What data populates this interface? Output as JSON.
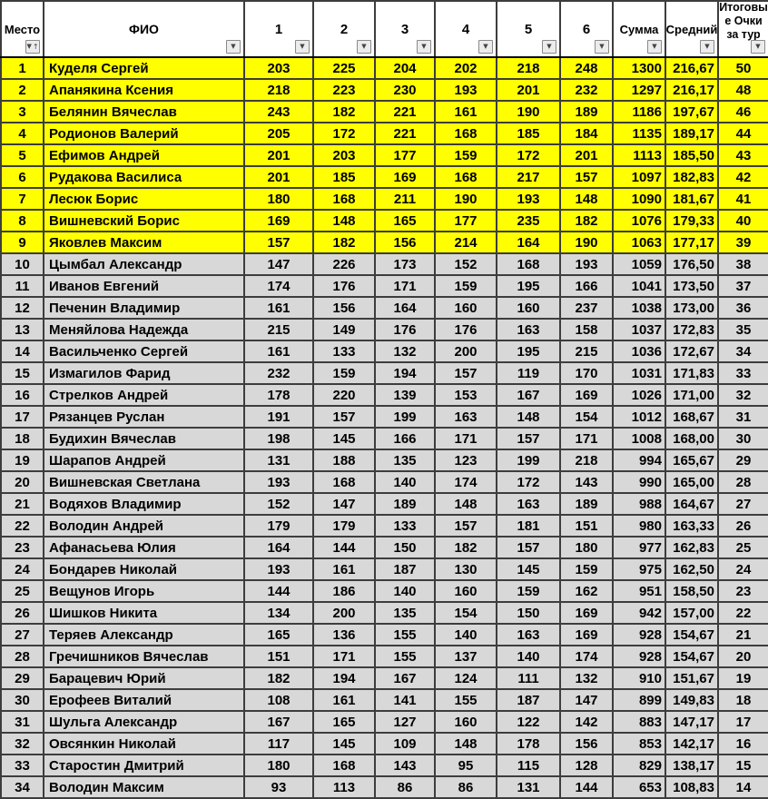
{
  "icons": {
    "filter_glyph": "▼",
    "sort_glyph": "↑"
  },
  "colors": {
    "highlight_row": "#ffff00",
    "normal_row": "#d8d8d8",
    "header_bg": "#ffffff",
    "grid": "#3d3d3d"
  },
  "highlight_row_count": 9,
  "columns": [
    {
      "id": "place",
      "label": "Место",
      "sorted": true
    },
    {
      "id": "name",
      "label": "ФИО"
    },
    {
      "id": "g1",
      "label": "1"
    },
    {
      "id": "g2",
      "label": "2"
    },
    {
      "id": "g3",
      "label": "3"
    },
    {
      "id": "g4",
      "label": "4"
    },
    {
      "id": "g5",
      "label": "5"
    },
    {
      "id": "g6",
      "label": "6"
    },
    {
      "id": "sum",
      "label": "Сумма"
    },
    {
      "id": "avg",
      "label": "Средний"
    },
    {
      "id": "points",
      "label": "Итоговые Очки за тур"
    }
  ],
  "rows": [
    {
      "place": 1,
      "name": "Куделя Сергей",
      "games": [
        203,
        225,
        204,
        202,
        218,
        248
      ],
      "sum": 1300,
      "avg": "216,67",
      "points": 50
    },
    {
      "place": 2,
      "name": "Апанякина Ксения",
      "games": [
        218,
        223,
        230,
        193,
        201,
        232
      ],
      "sum": 1297,
      "avg": "216,17",
      "points": 48
    },
    {
      "place": 3,
      "name": "Белянин Вячеслав",
      "games": [
        243,
        182,
        221,
        161,
        190,
        189
      ],
      "sum": 1186,
      "avg": "197,67",
      "points": 46
    },
    {
      "place": 4,
      "name": "Родионов Валерий",
      "games": [
        205,
        172,
        221,
        168,
        185,
        184
      ],
      "sum": 1135,
      "avg": "189,17",
      "points": 44
    },
    {
      "place": 5,
      "name": "Ефимов Андрей",
      "games": [
        201,
        203,
        177,
        159,
        172,
        201
      ],
      "sum": 1113,
      "avg": "185,50",
      "points": 43
    },
    {
      "place": 6,
      "name": "Рудакова Василиса",
      "games": [
        201,
        185,
        169,
        168,
        217,
        157
      ],
      "sum": 1097,
      "avg": "182,83",
      "points": 42
    },
    {
      "place": 7,
      "name": "Лесюк Борис",
      "games": [
        180,
        168,
        211,
        190,
        193,
        148
      ],
      "sum": 1090,
      "avg": "181,67",
      "points": 41
    },
    {
      "place": 8,
      "name": "Вишневский Борис",
      "games": [
        169,
        148,
        165,
        177,
        235,
        182
      ],
      "sum": 1076,
      "avg": "179,33",
      "points": 40
    },
    {
      "place": 9,
      "name": "Яковлев Максим",
      "games": [
        157,
        182,
        156,
        214,
        164,
        190
      ],
      "sum": 1063,
      "avg": "177,17",
      "points": 39
    },
    {
      "place": 10,
      "name": "Цымбал Александр",
      "games": [
        147,
        226,
        173,
        152,
        168,
        193
      ],
      "sum": 1059,
      "avg": "176,50",
      "points": 38
    },
    {
      "place": 11,
      "name": "Иванов Евгений",
      "games": [
        174,
        176,
        171,
        159,
        195,
        166
      ],
      "sum": 1041,
      "avg": "173,50",
      "points": 37
    },
    {
      "place": 12,
      "name": "Печенин Владимир",
      "games": [
        161,
        156,
        164,
        160,
        160,
        237
      ],
      "sum": 1038,
      "avg": "173,00",
      "points": 36
    },
    {
      "place": 13,
      "name": "Меняйлова Надежда",
      "games": [
        215,
        149,
        176,
        176,
        163,
        158
      ],
      "sum": 1037,
      "avg": "172,83",
      "points": 35
    },
    {
      "place": 14,
      "name": "Васильченко Сергей",
      "games": [
        161,
        133,
        132,
        200,
        195,
        215
      ],
      "sum": 1036,
      "avg": "172,67",
      "points": 34
    },
    {
      "place": 15,
      "name": "Измагилов Фарид",
      "games": [
        232,
        159,
        194,
        157,
        119,
        170
      ],
      "sum": 1031,
      "avg": "171,83",
      "points": 33
    },
    {
      "place": 16,
      "name": "Стрелков Андрей",
      "games": [
        178,
        220,
        139,
        153,
        167,
        169
      ],
      "sum": 1026,
      "avg": "171,00",
      "points": 32
    },
    {
      "place": 17,
      "name": "Рязанцев Руслан",
      "games": [
        191,
        157,
        199,
        163,
        148,
        154
      ],
      "sum": 1012,
      "avg": "168,67",
      "points": 31
    },
    {
      "place": 18,
      "name": "Будихин Вячеслав",
      "games": [
        198,
        145,
        166,
        171,
        157,
        171
      ],
      "sum": 1008,
      "avg": "168,00",
      "points": 30
    },
    {
      "place": 19,
      "name": "Шарапов Андрей",
      "games": [
        131,
        188,
        135,
        123,
        199,
        218
      ],
      "sum": 994,
      "avg": "165,67",
      "points": 29
    },
    {
      "place": 20,
      "name": "Вишневская Светлана",
      "games": [
        193,
        168,
        140,
        174,
        172,
        143
      ],
      "sum": 990,
      "avg": "165,00",
      "points": 28
    },
    {
      "place": 21,
      "name": "Водяхов Владимир",
      "games": [
        152,
        147,
        189,
        148,
        163,
        189
      ],
      "sum": 988,
      "avg": "164,67",
      "points": 27
    },
    {
      "place": 22,
      "name": "Володин Андрей",
      "games": [
        179,
        179,
        133,
        157,
        181,
        151
      ],
      "sum": 980,
      "avg": "163,33",
      "points": 26
    },
    {
      "place": 23,
      "name": "Афанасьева Юлия",
      "games": [
        164,
        144,
        150,
        182,
        157,
        180
      ],
      "sum": 977,
      "avg": "162,83",
      "points": 25
    },
    {
      "place": 24,
      "name": "Бондарев Николай",
      "games": [
        193,
        161,
        187,
        130,
        145,
        159
      ],
      "sum": 975,
      "avg": "162,50",
      "points": 24
    },
    {
      "place": 25,
      "name": "Вещунов Игорь",
      "games": [
        144,
        186,
        140,
        160,
        159,
        162
      ],
      "sum": 951,
      "avg": "158,50",
      "points": 23
    },
    {
      "place": 26,
      "name": "Шишков Никита",
      "games": [
        134,
        200,
        135,
        154,
        150,
        169
      ],
      "sum": 942,
      "avg": "157,00",
      "points": 22
    },
    {
      "place": 27,
      "name": "Теряев Александр",
      "games": [
        165,
        136,
        155,
        140,
        163,
        169
      ],
      "sum": 928,
      "avg": "154,67",
      "points": 21
    },
    {
      "place": 28,
      "name": "Гречишников Вячеслав",
      "games": [
        151,
        171,
        155,
        137,
        140,
        174
      ],
      "sum": 928,
      "avg": "154,67",
      "points": 20
    },
    {
      "place": 29,
      "name": "Барацевич Юрий",
      "games": [
        182,
        194,
        167,
        124,
        111,
        132
      ],
      "sum": 910,
      "avg": "151,67",
      "points": 19
    },
    {
      "place": 30,
      "name": "Ерофеев Виталий",
      "games": [
        108,
        161,
        141,
        155,
        187,
        147
      ],
      "sum": 899,
      "avg": "149,83",
      "points": 18
    },
    {
      "place": 31,
      "name": "Шульга Александр",
      "games": [
        167,
        165,
        127,
        160,
        122,
        142
      ],
      "sum": 883,
      "avg": "147,17",
      "points": 17
    },
    {
      "place": 32,
      "name": "Овсянкин Николай",
      "games": [
        117,
        145,
        109,
        148,
        178,
        156
      ],
      "sum": 853,
      "avg": "142,17",
      "points": 16
    },
    {
      "place": 33,
      "name": "Старостин Дмитрий",
      "games": [
        180,
        168,
        143,
        95,
        115,
        128
      ],
      "sum": 829,
      "avg": "138,17",
      "points": 15
    },
    {
      "place": 34,
      "name": "Володин Максим",
      "games": [
        93,
        113,
        86,
        86,
        131,
        144
      ],
      "sum": 653,
      "avg": "108,83",
      "points": 14
    }
  ]
}
